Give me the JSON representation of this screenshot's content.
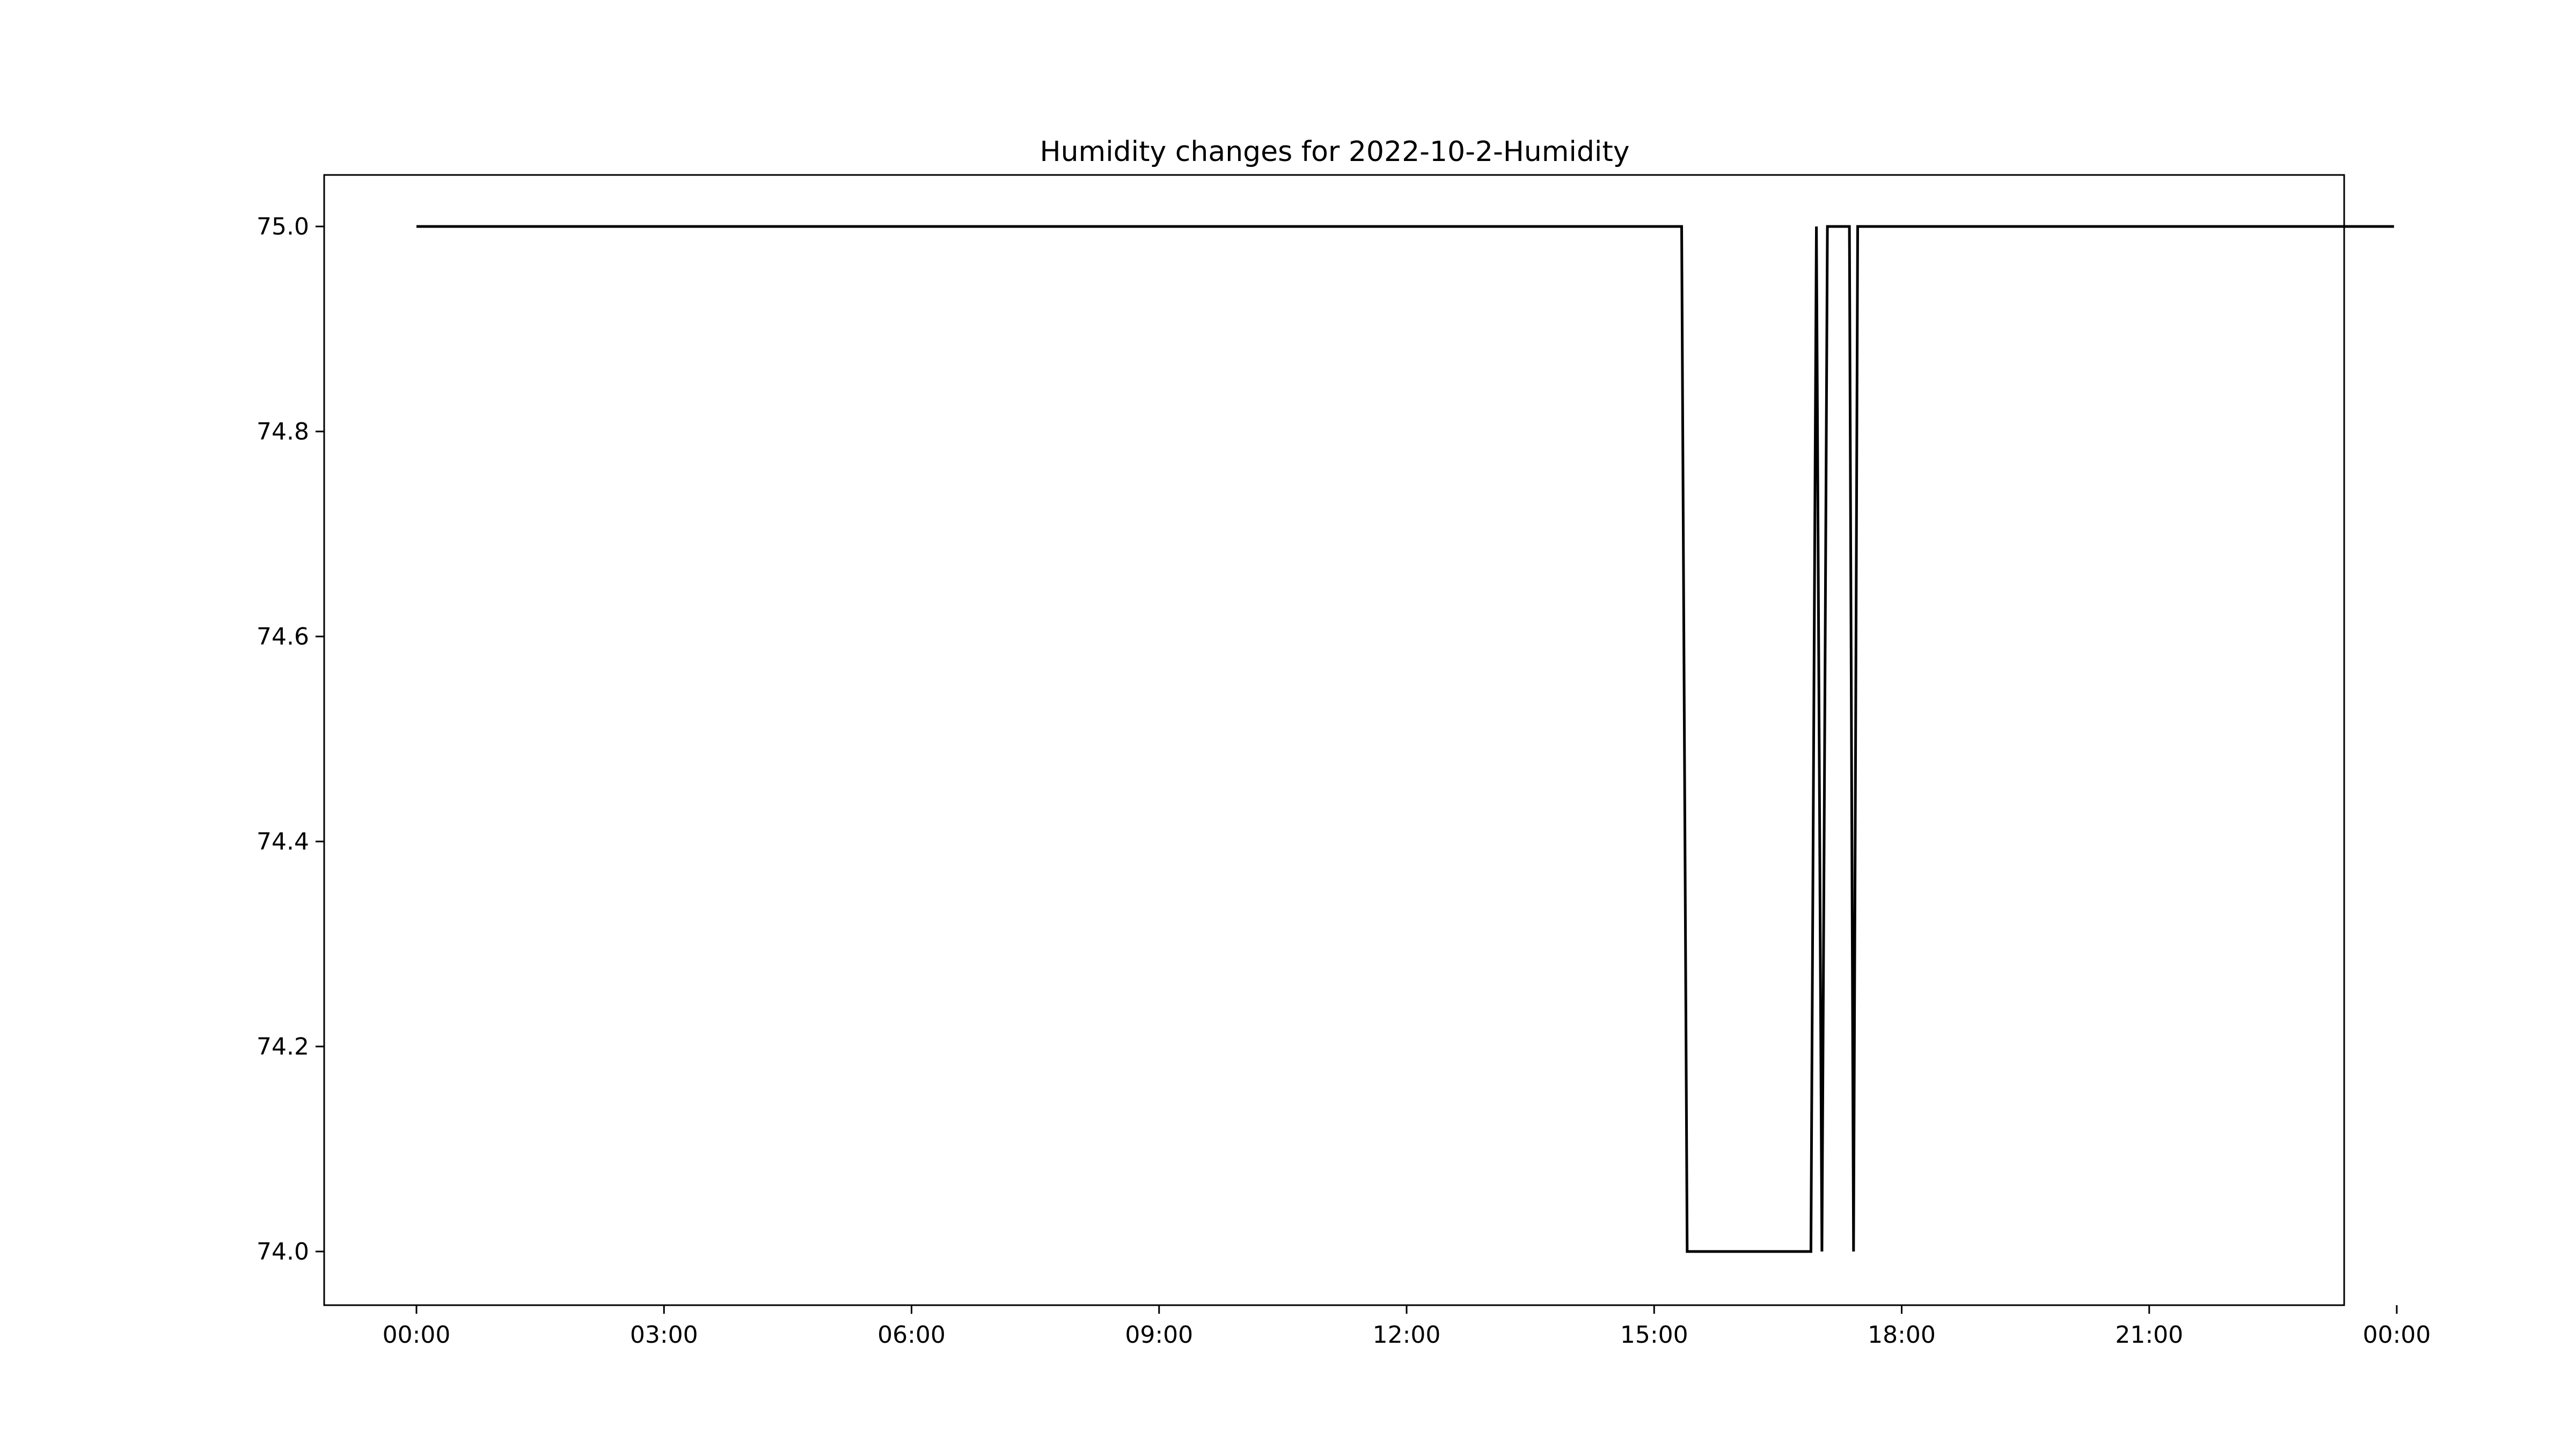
{
  "chart_data": {
    "type": "line",
    "title": "Humidity changes for 2022-10-2-Humidity",
    "xlabel": "",
    "ylabel": "",
    "x_axis": {
      "unit": "time of day (HH:MM)",
      "range": [
        "00:00",
        "24:50"
      ],
      "ticks": [
        "00:00",
        "03:00",
        "06:00",
        "09:00",
        "12:00",
        "15:00",
        "18:00",
        "21:00",
        "00:00"
      ]
    },
    "y_axis": {
      "range": [
        73.95,
        75.05
      ],
      "ticks": [
        "74.0",
        "74.2",
        "74.4",
        "74.6",
        "74.8",
        "75.0"
      ]
    },
    "grid": false,
    "legend": "none",
    "series": [
      {
        "color": "#000000",
        "points": [
          {
            "x": "00:00",
            "y": 75.0
          },
          {
            "x": "15:20",
            "y": 75.0
          },
          {
            "x": "15:24",
            "y": 74.0
          },
          {
            "x": "16:54",
            "y": 74.0
          },
          {
            "x": "16:58",
            "y": 75.0
          },
          {
            "x": "17:02",
            "y": 74.0
          },
          {
            "x": "17:06",
            "y": 75.0
          },
          {
            "x": "17:22",
            "y": 75.0
          },
          {
            "x": "17:25",
            "y": 74.0
          },
          {
            "x": "17:28",
            "y": 75.0
          },
          {
            "x": "23:58",
            "y": 75.0
          }
        ]
      }
    ]
  }
}
